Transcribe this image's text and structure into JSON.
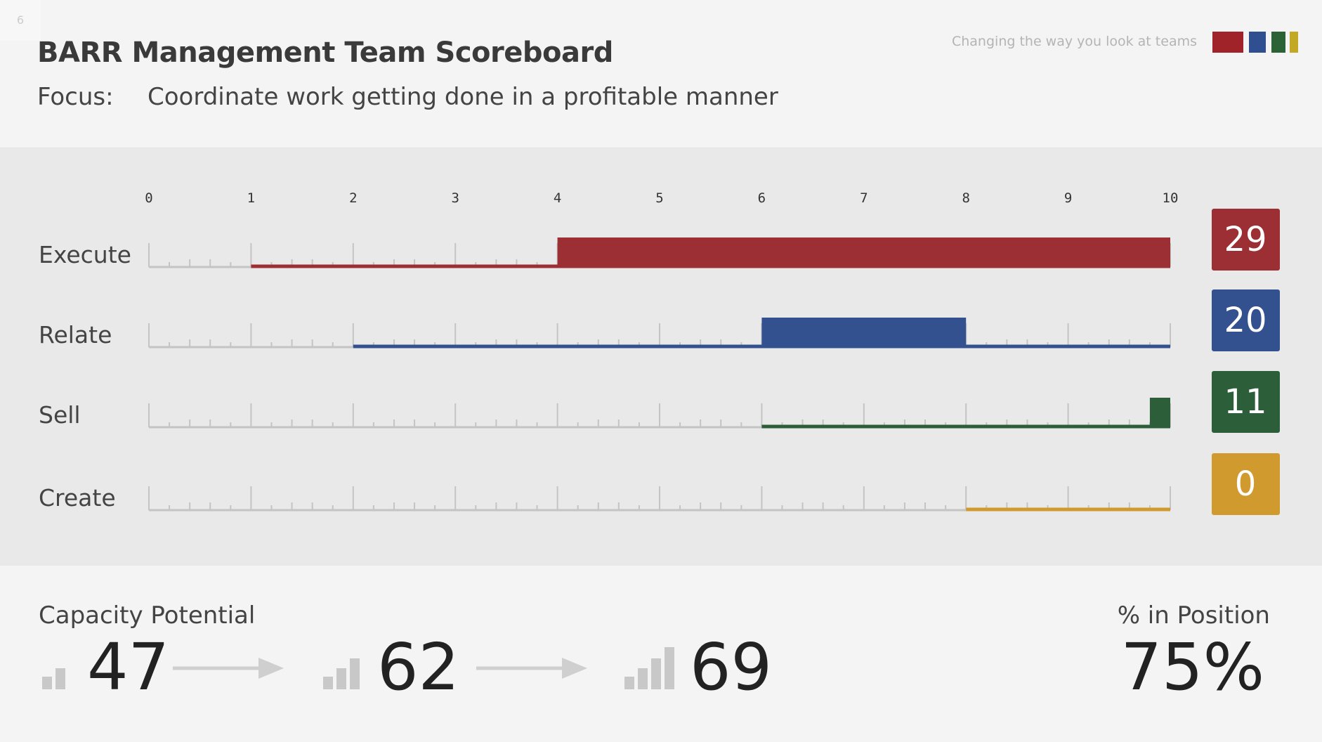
{
  "page_number": "6",
  "header": {
    "title": "BARR Management Team Scoreboard",
    "focus_label": "Focus:",
    "focus_text": "Coordinate work getting done in a profitable manner",
    "tagline": "Changing the way you look at teams",
    "brand_colors": [
      "#a02329",
      "#2f4f91",
      "#2b6236",
      "#c2a825"
    ]
  },
  "chart_data": {
    "type": "bar",
    "orientation": "horizontal-range",
    "xlim": [
      0,
      10
    ],
    "x_ticks": [
      "0",
      "1",
      "2",
      "3",
      "4",
      "5",
      "6",
      "7",
      "8",
      "9",
      "10"
    ],
    "rows": [
      {
        "name": "Execute",
        "range": [
          1,
          10
        ],
        "bar": [
          4,
          10
        ],
        "score": "29",
        "color": "#9b2f33"
      },
      {
        "name": "Relate",
        "range": [
          2,
          10
        ],
        "bar": [
          6,
          8
        ],
        "score": "20",
        "color": "#34518f"
      },
      {
        "name": "Sell",
        "range": [
          6,
          10
        ],
        "bar": [
          9.8,
          10
        ],
        "score": "11",
        "color": "#2d5e3a"
      },
      {
        "name": "Create",
        "range": [
          8,
          10
        ],
        "bar": null,
        "score": "0",
        "color": "#d09a2e"
      }
    ]
  },
  "capacity": {
    "title": "Capacity Potential",
    "values": [
      "47",
      "62",
      "69"
    ],
    "levels": [
      2,
      3,
      4
    ]
  },
  "position": {
    "title": "% in Position",
    "value": "75%"
  }
}
